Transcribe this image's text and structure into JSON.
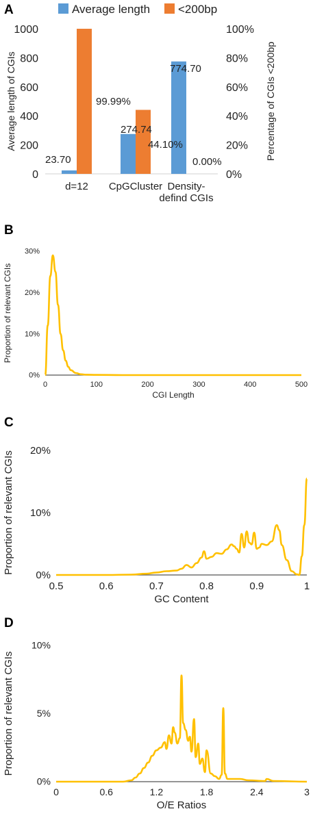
{
  "panels": {
    "A": {
      "letter": "A"
    },
    "B": {
      "letter": "B"
    },
    "C": {
      "letter": "C"
    },
    "D": {
      "letter": "D"
    }
  },
  "colors": {
    "blue": "#5b9bd5",
    "orange": "#ed7d31",
    "curve": "#ffc000",
    "axis": "#555555",
    "text": "#222222"
  },
  "chart_data": [
    {
      "id": "A",
      "type": "bar",
      "categories": [
        "d=12",
        "CpGCluster",
        "Density-defind CGIs"
      ],
      "category_lines": [
        [
          "d=12"
        ],
        [
          "CpGCluster"
        ],
        [
          "Density-",
          "defind CGIs"
        ]
      ],
      "series": [
        {
          "name": "Average length",
          "axis": "left",
          "values": [
            23.7,
            274.74,
            774.7
          ],
          "labels": [
            "23.70",
            "274.74",
            "774.70"
          ]
        },
        {
          "name": "<200bp",
          "axis": "right",
          "values": [
            99.99,
            44.1,
            0.0
          ],
          "labels": [
            "99.99%",
            "44.10%",
            "0.00%"
          ]
        }
      ],
      "ylabel": "Average length of CGIs",
      "ylabel_right": "Percentage of CGIs <200bp",
      "ylim": [
        0,
        1000
      ],
      "ylim_right": [
        0,
        100
      ],
      "yticks": [
        "0",
        "200",
        "400",
        "600",
        "800",
        "1000"
      ],
      "yticks_right": [
        "0%",
        "20%",
        "40%",
        "60%",
        "80%",
        "100%"
      ],
      "legend_position": "top"
    },
    {
      "id": "B",
      "type": "line",
      "xlabel": "CGI Length",
      "ylabel": "Proportion of relevant CGIs",
      "xlim": [
        0,
        500
      ],
      "ylim": [
        0,
        30
      ],
      "xticks": [
        "0",
        "100",
        "200",
        "300",
        "400",
        "500"
      ],
      "yticks": [
        "0%",
        "10%",
        "20%",
        "30%"
      ],
      "x": [
        0,
        5,
        10,
        15,
        20,
        25,
        30,
        35,
        40,
        45,
        50,
        60,
        70,
        80,
        100,
        150,
        200,
        300,
        400,
        500
      ],
      "y": [
        0,
        12,
        24,
        29,
        25,
        17,
        10,
        6,
        3.5,
        2,
        1.2,
        0.5,
        0.2,
        0.1,
        0.05,
        0,
        0,
        0,
        0,
        0
      ]
    },
    {
      "id": "C",
      "type": "line",
      "xlabel": "GC Content",
      "ylabel": "Proportion of relevant CGIs",
      "xlim": [
        0.5,
        1.0
      ],
      "ylim": [
        0,
        20
      ],
      "xticks": [
        "0.5",
        "0.6",
        "0.7",
        "0.8",
        "0.9",
        "1"
      ],
      "yticks": [
        "0%",
        "10%",
        "20%"
      ],
      "x": [
        0.5,
        0.6,
        0.65,
        0.68,
        0.7,
        0.72,
        0.74,
        0.75,
        0.76,
        0.77,
        0.78,
        0.79,
        0.795,
        0.8,
        0.81,
        0.82,
        0.83,
        0.84,
        0.85,
        0.855,
        0.86,
        0.865,
        0.87,
        0.875,
        0.88,
        0.885,
        0.89,
        0.895,
        0.9,
        0.905,
        0.91,
        0.92,
        0.93,
        0.94,
        0.945,
        0.95,
        0.96,
        0.97,
        0.98,
        0.985,
        0.99,
        0.995,
        1.0
      ],
      "y": [
        0,
        0,
        0.05,
        0.2,
        0.4,
        0.6,
        0.7,
        1.0,
        1.6,
        1.2,
        1.9,
        2.8,
        3.8,
        2.6,
        2.9,
        3.5,
        3.4,
        4.1,
        4.9,
        4.6,
        4.2,
        3.6,
        6.6,
        4.4,
        7.0,
        5.2,
        4.9,
        6.8,
        4.2,
        4.4,
        5.0,
        4.8,
        5.4,
        8.0,
        7.2,
        4.8,
        2.4,
        0.6,
        0.1,
        0.0,
        3.0,
        8.0,
        15.5
      ]
    },
    {
      "id": "D",
      "type": "line",
      "xlabel": "O/E Ratios",
      "ylabel": "Proportion of relevant CGIs",
      "xlim": [
        0,
        3
      ],
      "ylim": [
        0,
        10
      ],
      "xticks": [
        "0",
        "0.6",
        "1.2",
        "1.8",
        "2.4",
        "3"
      ],
      "yticks": [
        "0%",
        "5%",
        "10%"
      ],
      "x": [
        0,
        0.8,
        0.9,
        0.95,
        1.0,
        1.05,
        1.1,
        1.15,
        1.2,
        1.25,
        1.3,
        1.32,
        1.35,
        1.38,
        1.4,
        1.42,
        1.45,
        1.48,
        1.5,
        1.52,
        1.55,
        1.58,
        1.6,
        1.62,
        1.65,
        1.67,
        1.7,
        1.72,
        1.75,
        1.78,
        1.8,
        1.85,
        1.9,
        1.95,
        1.98,
        2.0,
        2.02,
        2.05,
        2.1,
        2.2,
        2.3,
        2.5,
        2.52,
        2.6,
        3.0
      ],
      "y": [
        0,
        0,
        0.1,
        0.3,
        0.6,
        1.0,
        1.4,
        1.9,
        2.3,
        2.5,
        2.9,
        2.4,
        3.4,
        2.8,
        4.0,
        3.6,
        2.8,
        3.2,
        7.8,
        4.3,
        3.8,
        3.0,
        3.3,
        2.2,
        4.6,
        1.8,
        2.8,
        1.3,
        1.7,
        0.7,
        2.3,
        0.6,
        0.4,
        0.2,
        0.5,
        5.4,
        0.6,
        0.2,
        0.2,
        0.2,
        0.1,
        0.05,
        0.2,
        0.05,
        0
      ]
    }
  ]
}
